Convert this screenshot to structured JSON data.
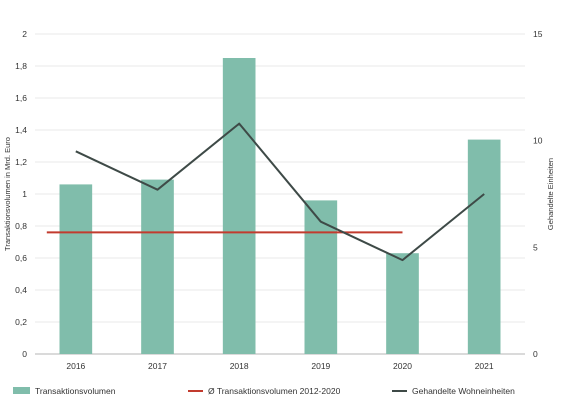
{
  "chart_data": {
    "type": "bar",
    "categories": [
      "2016",
      "2017",
      "2018",
      "2019",
      "2020",
      "2021"
    ],
    "ylabel": "Transaktionsvolumen in Mrd. Euro",
    "y2label": "Gehandelte Einheiten",
    "ylim": [
      0,
      2
    ],
    "y2lim": [
      0,
      15
    ],
    "y_ticks": [
      0,
      0.2,
      0.4,
      0.6,
      0.8,
      1,
      1.2,
      1.4,
      1.6,
      1.8,
      2
    ],
    "y_tick_labels": [
      "0",
      "0,2",
      "0,4",
      "0,6",
      "0,8",
      "1",
      "1,2",
      "1,4",
      "1,6",
      "1,8",
      "2"
    ],
    "y2_ticks": [
      0,
      5,
      10,
      15
    ],
    "y2_tick_labels": [
      "0",
      "5",
      "10",
      "15"
    ],
    "grid": true,
    "legend_position": "bottom",
    "series": [
      {
        "name": "Transaktionsvolumen",
        "type": "bar",
        "axis": "left",
        "color": "#80bdab",
        "values": [
          1.06,
          1.09,
          1.85,
          0.96,
          0.63,
          1.34
        ]
      },
      {
        "name": "Ø Transaktionsvolumen 2012-2020",
        "type": "line",
        "axis": "left",
        "color": "#c23b2e",
        "values": [
          0.76,
          0.76,
          0.76,
          0.76,
          0.76,
          null
        ]
      },
      {
        "name": "Gehandelte Wohneinheiten",
        "type": "line",
        "axis": "right",
        "color": "#3e4a47",
        "values": [
          9.5,
          7.7,
          10.8,
          6.2,
          4.4,
          7.5
        ]
      }
    ]
  }
}
